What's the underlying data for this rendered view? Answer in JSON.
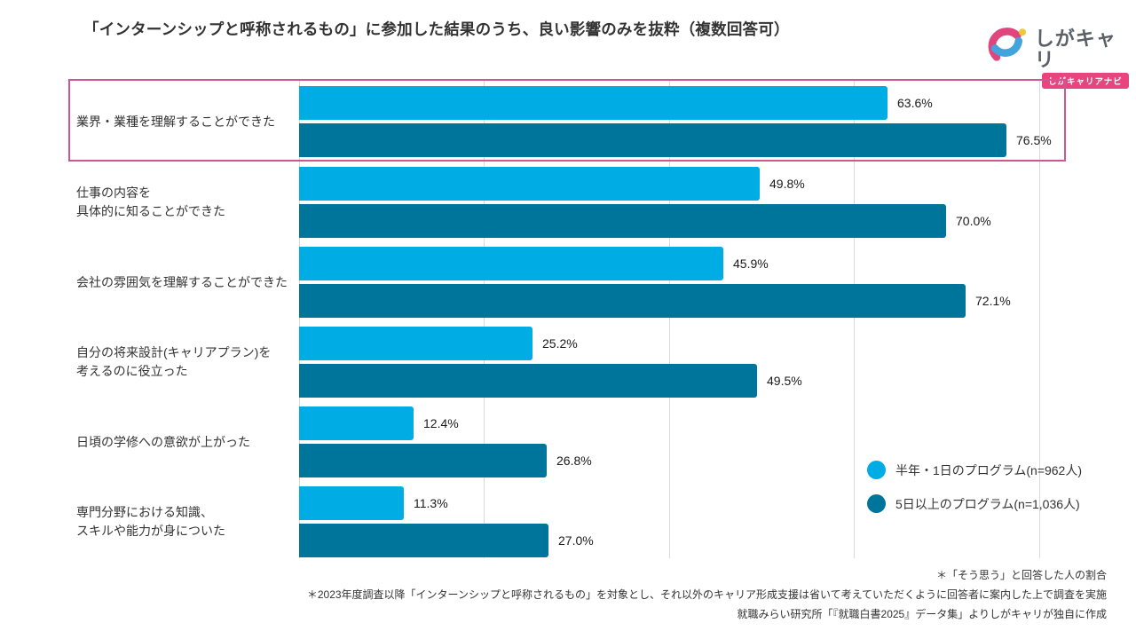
{
  "header": {
    "title": "「インターンシップと呼称されるもの」に参加した結果のうち、良い影響のみを抜粋（複数回答可）",
    "logo": {
      "name": "しがキャリ",
      "badge": "しがキャリアナビ",
      "icon_colors": {
        "pink": "#e0457e",
        "blue": "#41a4dd",
        "yellow": "#edc93b"
      }
    }
  },
  "chart_data": {
    "type": "bar",
    "orientation": "horizontal",
    "categories": [
      "業界・業種を理解することができた",
      "仕事の内容を\n具体的に知ることができた",
      "会社の雰囲気を理解することができた",
      "自分の将来設計(キャリアプラン)を\n考えるのに役立った",
      "日頃の学修への意欲が上がった",
      "専門分野における知識、\nスキルや能力が身についた"
    ],
    "series": [
      {
        "name": "半年・1日のプログラム(n=962人)",
        "color": "#00ace4",
        "values": [
          63.6,
          49.8,
          45.9,
          25.2,
          12.4,
          11.3
        ],
        "labels": [
          "63.6%",
          "49.8%",
          "45.9%",
          "25.2%",
          "12.4%",
          "11.3%"
        ]
      },
      {
        "name": "5日以上のプログラム(n=1,036人)",
        "color": "#00759c",
        "values": [
          76.5,
          70.0,
          72.1,
          49.5,
          26.8,
          27.0
        ],
        "labels": [
          "76.5%",
          "70.0%",
          "72.1%",
          "49.5%",
          "26.8%",
          "27.0%"
        ]
      }
    ],
    "value_suffix": "%",
    "xlim": [
      0,
      100
    ],
    "gridlines_percent": [
      0,
      20,
      40,
      60,
      80
    ],
    "grid": true,
    "legend_position": "bottom-right",
    "highlighted_category_index": 0,
    "highlight_color": "#ce5792"
  },
  "footnotes": [
    "＊「そう思う」と回答した人の割合",
    "＊2023年度調査以降「インターンシップと呼称されるもの」を対象とし、それ以外のキャリア形成支援は省いて考えていただくように回答者に案内した上で調査を実施",
    "就職みらい研究所「『就職白書2025』データ集」よりしがキャリが独自に作成"
  ]
}
